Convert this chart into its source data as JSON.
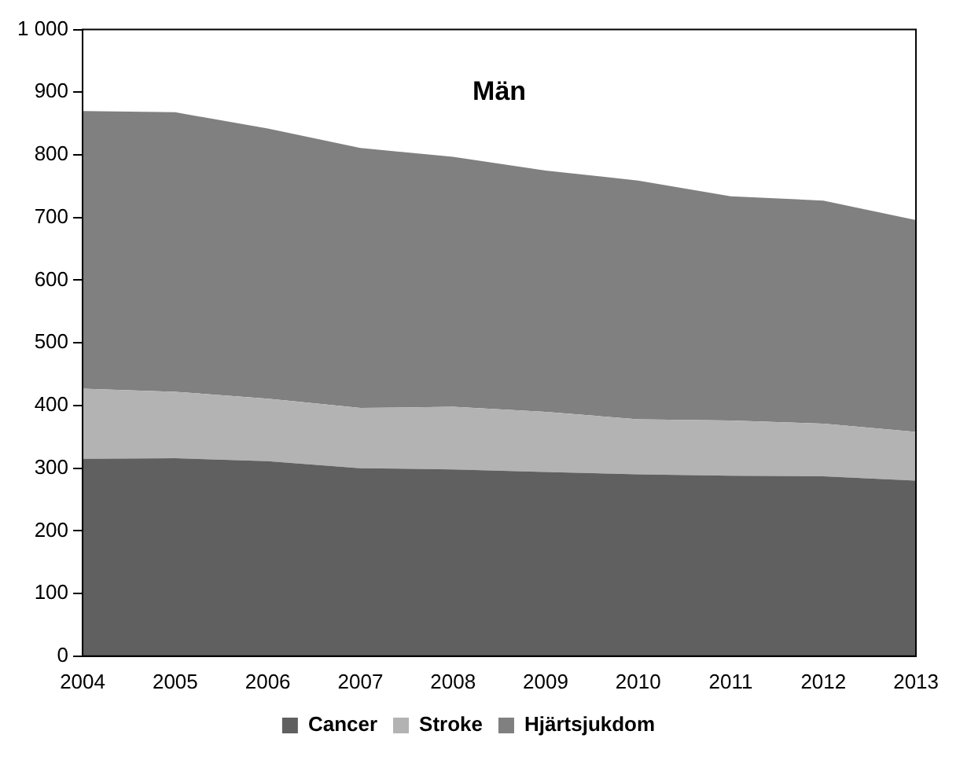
{
  "chart_data": {
    "type": "area",
    "title": "Män",
    "stacked": true,
    "x": [
      2004,
      2005,
      2006,
      2007,
      2008,
      2009,
      2010,
      2011,
      2012,
      2013
    ],
    "series": [
      {
        "name": "Cancer",
        "color": "#606060",
        "values": [
          315,
          316,
          311,
          300,
          298,
          294,
          290,
          288,
          287,
          280
        ]
      },
      {
        "name": "Stroke",
        "color": "#b3b3b3",
        "values": [
          112,
          106,
          100,
          96,
          100,
          96,
          88,
          88,
          84,
          78
        ]
      },
      {
        "name": "Hjärtsjukdom",
        "color": "#808080",
        "values": [
          443,
          446,
          431,
          415,
          399,
          385,
          381,
          358,
          356,
          338
        ]
      }
    ],
    "xlim": [
      2004,
      2013
    ],
    "xticks": [
      2004,
      2005,
      2006,
      2007,
      2008,
      2009,
      2010,
      2011,
      2012,
      2013
    ],
    "ylim": [
      0,
      1000
    ],
    "yticks": [
      0,
      100,
      200,
      300,
      400,
      500,
      600,
      700,
      800,
      900,
      {
        "value": 1000,
        "label": "1 000"
      }
    ],
    "grid": false,
    "legend": "bottom"
  }
}
